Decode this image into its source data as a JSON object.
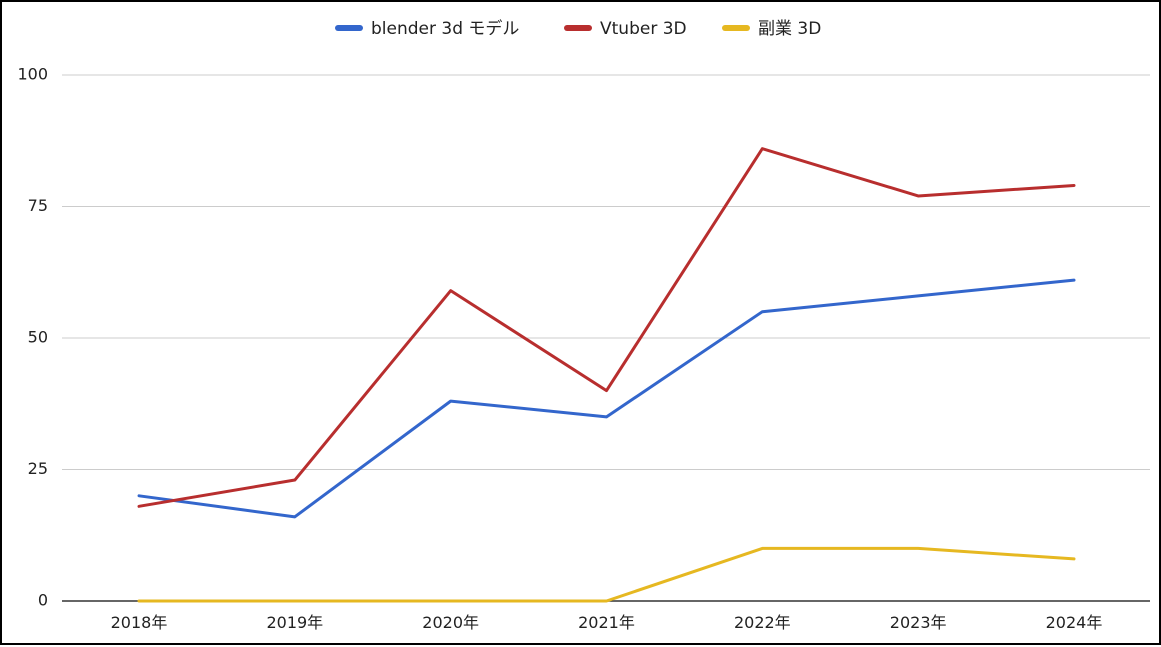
{
  "chart_data": {
    "type": "line",
    "categories": [
      "2018年",
      "2019年",
      "2020年",
      "2021年",
      "2022年",
      "2023年",
      "2024年"
    ],
    "series": [
      {
        "name": "blender 3d モデル",
        "color": "#3366cc",
        "values": [
          20,
          16,
          38,
          35,
          55,
          58,
          61
        ]
      },
      {
        "name": "Vtuber 3D",
        "color": "#b82e2e",
        "values": [
          18,
          23,
          59,
          40,
          86,
          77,
          79
        ]
      },
      {
        "name": "副業 3D",
        "color": "#e6b821",
        "values": [
          0,
          0,
          0,
          0,
          10,
          10,
          8
        ]
      }
    ],
    "y_ticks": [
      "0",
      "25",
      "50",
      "75",
      "100"
    ],
    "ylim": [
      0,
      100
    ],
    "grid": true,
    "legend_position": "top-center",
    "title": "",
    "xlabel": "",
    "ylabel": ""
  }
}
